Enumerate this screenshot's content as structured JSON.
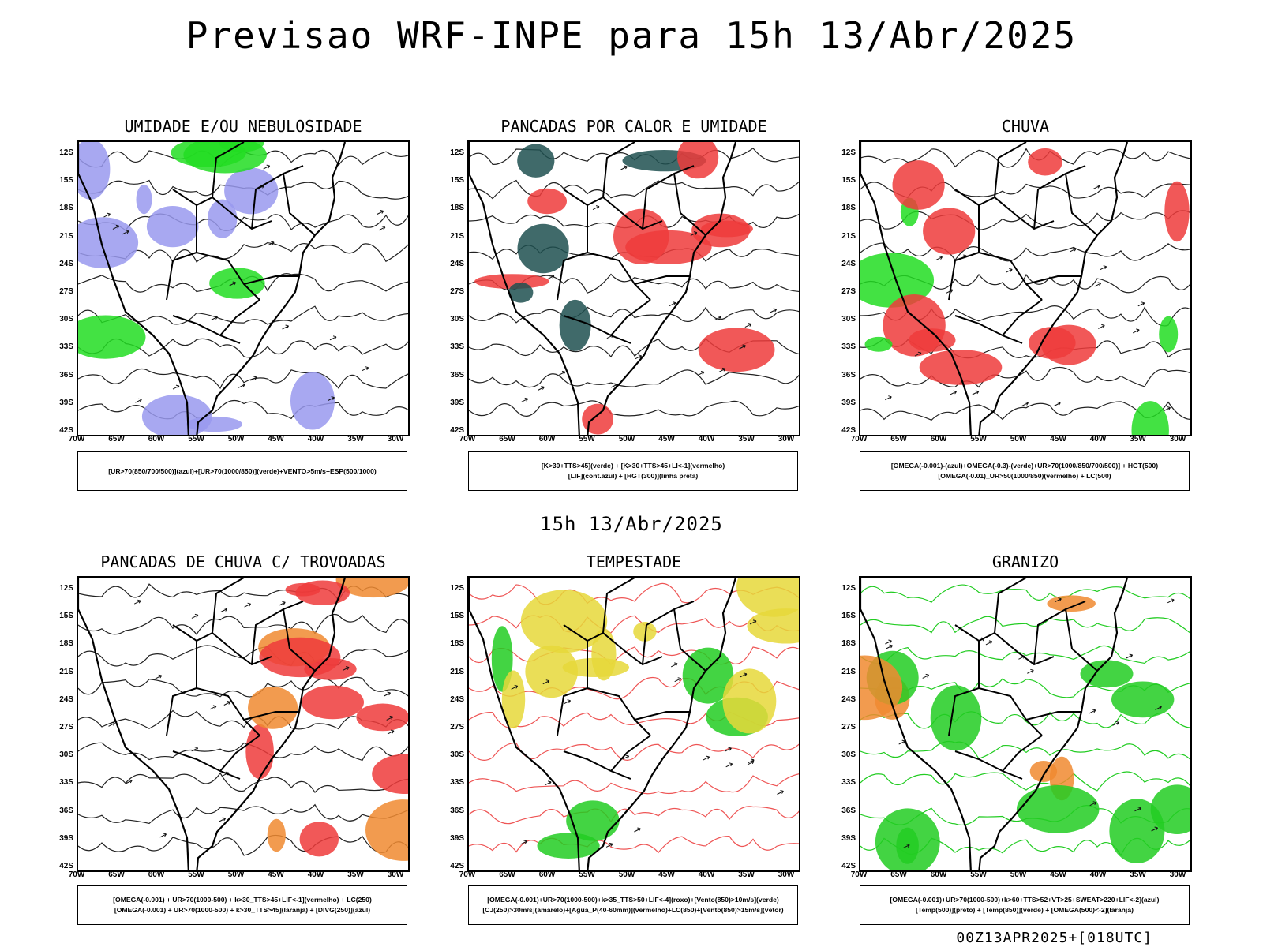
{
  "header": {
    "title": "Previsao WRF-INPE  para 15h 13/Abr/2025"
  },
  "middle": {
    "time": "15h 13/Abr/2025"
  },
  "footer": {
    "stamp": "00Z13APR2025+[018UTC]"
  },
  "axes": {
    "lat_labels": [
      "12S",
      "15S",
      "18S",
      "21S",
      "24S",
      "27S",
      "30S",
      "33S",
      "36S",
      "39S",
      "42S"
    ],
    "lon_labels": [
      "70W",
      "65W",
      "60W",
      "55W",
      "50W",
      "45W",
      "40W",
      "35W",
      "30W"
    ]
  },
  "panels": [
    {
      "title": "UMIDADE E/OU NEBULOSIDADE",
      "legend": [
        "[UR>70(850/700/500)](azul)+[UR>70(1000/850)](verde)+VENTO>5m/s+ESP(500/1000)"
      ],
      "fill_colors": [
        "#9999ee",
        "#22dd22"
      ]
    },
    {
      "title": "PANCADAS POR CALOR E UMIDADE",
      "legend": [
        "[K>30+TTS>45](verde) + [K>30+TTS>45+LI<-1](vermelho)",
        "[LIF](cont.azul) + [HGT(300)](linha preta)"
      ],
      "fill_colors": [
        "#ef3b3b",
        "#1f5050"
      ]
    },
    {
      "title": "CHUVA",
      "legend": [
        "[OMEGA(-0.001)-(azul)+OMEGA(-0.3)-(verde)+UR>70(1000/850/700/500)] + HGT(500)",
        "[OMEGA(-0.01)_UR>50(1000/850)(vermelho) + LC(500)"
      ],
      "fill_colors": [
        "#ef3b3b",
        "#22dd22"
      ]
    },
    {
      "title": "PANCADAS DE CHUVA C/ TROVOADAS",
      "legend": [
        "[OMEGA(-0.001) + UR>70(1000-500) + k>30_TTS>45+LIF<-1](vermelho) + LC(250)",
        "[OMEGA(-0.001) + UR>70(1000-500) + k>30_TTS>45](laranja) + [DIVG(250)](azul)"
      ],
      "fill_colors": [
        "#ef3b3b",
        "#f08a30"
      ]
    },
    {
      "title": "TEMPESTADE",
      "legend": [
        "[OMEGA(-0.001)+UR>70(1000-500)+k>35_TTS>50+LIF<-4](roxo)+[Vento(850)>10m/s](verde)",
        "[CJ(250)>30m/s](amarelo)+[Agua_P(40-60mm)](vermelho)+LC(850)+[Vento(850)>15m/s](vetor)"
      ],
      "fill_colors": [
        "#e6d83a",
        "#22cc22"
      ]
    },
    {
      "title": "GRANIZO",
      "legend": [
        "[OMEGA(-0.001)+UR>70(1000-500)+k>60+TTS>52+VT>25+SWEAT>220+LIF<-2](azul)",
        "[Temp(500)](preto) + [Temp(850)](verde) + [OMEGA(500)<-2](laranja)"
      ],
      "fill_colors": [
        "#22cc22",
        "#f08a30"
      ]
    }
  ]
}
